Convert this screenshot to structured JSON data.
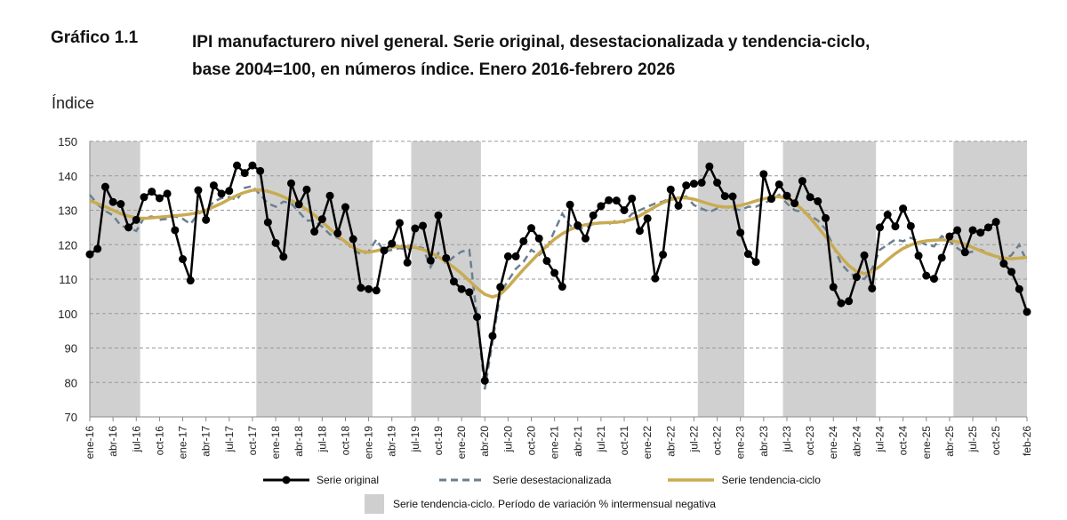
{
  "figure_number": "Gráfico 1.1",
  "title_line1": "IPI manufacturero nivel general. Serie original, desestacionalizada y tendencia-ciclo,",
  "title_line2": "base 2004=100, en números índice. Enero 2016-febrero 2026",
  "chart_data": {
    "type": "line",
    "ylabel": "Índice",
    "ylim": [
      70,
      150
    ],
    "yticks": [
      70,
      80,
      90,
      100,
      110,
      120,
      130,
      140,
      150
    ],
    "grid": true,
    "x_start": "ene-16",
    "x_end": "feb-26",
    "xtick_labels": [
      "ene-16",
      "abr-16",
      "jul-16",
      "oct-16",
      "ene-17",
      "abr-17",
      "jul-17",
      "oct-17",
      "ene-18",
      "abr-18",
      "jul-18",
      "oct-18",
      "ene-19",
      "abr-19",
      "jul-19",
      "oct-19",
      "ene-20",
      "abr-20",
      "jul-20",
      "oct-20",
      "ene-21",
      "abr-21",
      "jul-21",
      "oct-21",
      "ene-22",
      "abr-22",
      "jul-22",
      "oct-22",
      "ene-23",
      "abr-23",
      "jul-23",
      "oct-23",
      "ene-24",
      "abr-24",
      "jul-24",
      "oct-24",
      "ene-25",
      "abr-25",
      "jul-25",
      "oct-25",
      "feb-26"
    ],
    "xtick_month_index": [
      0,
      3,
      6,
      9,
      12,
      15,
      18,
      21,
      24,
      27,
      30,
      33,
      36,
      39,
      42,
      45,
      48,
      51,
      54,
      57,
      60,
      63,
      66,
      69,
      72,
      75,
      78,
      81,
      84,
      87,
      90,
      93,
      96,
      99,
      102,
      105,
      108,
      111,
      114,
      117,
      121
    ],
    "shaded_periods": [
      [
        0,
        7
      ],
      [
        22,
        37
      ],
      [
        42,
        51
      ],
      [
        79,
        85
      ],
      [
        90,
        102
      ],
      [
        112,
        123
      ]
    ],
    "series": [
      {
        "name": "Serie original",
        "color": "#000000",
        "style": "solid-markers",
        "values": [
          117.2,
          118.8,
          136.8,
          132.4,
          131.8,
          125.0,
          127.2,
          133.8,
          135.4,
          133.5,
          134.8,
          124.2,
          115.8,
          109.6,
          135.8,
          127.2,
          137.2,
          134.8,
          135.6,
          143.0,
          140.8,
          143.0,
          141.4,
          126.5,
          120.5,
          116.5,
          137.8,
          131.7,
          136.0,
          123.8,
          127.4,
          134.2,
          123.3,
          130.9,
          121.6,
          107.5,
          107.1,
          106.7,
          118.3,
          120.3,
          126.3,
          114.8,
          124.7,
          125.5,
          115.4,
          128.5,
          116.1,
          109.3,
          107.1,
          106.2,
          99.0,
          80.5,
          93.5,
          107.7,
          116.6,
          116.6,
          121.0,
          124.8,
          121.8,
          115.3,
          111.8,
          107.8,
          131.6,
          125.6,
          121.8,
          128.5,
          131.2,
          132.9,
          132.8,
          130.0,
          133.4,
          124.0,
          127.6,
          110.2,
          117.1,
          136.0,
          131.3,
          137.2,
          137.7,
          138.0,
          142.7,
          138.0,
          134.1,
          134.0,
          123.5,
          117.3,
          115.0,
          140.5,
          133.3,
          137.5,
          134.2,
          132.0,
          138.5,
          133.8,
          132.6,
          127.7,
          107.7,
          103.0,
          103.6,
          110.6,
          116.9,
          107.3,
          125.0,
          128.7,
          125.3,
          130.5,
          125.4,
          116.8,
          111.0,
          110.1,
          116.2,
          122.4,
          124.2,
          117.8,
          124.2,
          123.5,
          125.0,
          126.6,
          114.5,
          112.1,
          107.1,
          100.5
        ]
      },
      {
        "name": "Serie desestacionalizada",
        "color": "#6b7f91",
        "style": "dashed",
        "values": [
          134.5,
          131.7,
          129.8,
          128.5,
          125.5,
          124.8,
          124.0,
          127.8,
          128.2,
          127.2,
          127.5,
          128.2,
          127.5,
          126.0,
          129.0,
          130.0,
          132.5,
          133.5,
          133.8,
          133.0,
          136.5,
          137.0,
          134.5,
          132.0,
          131.0,
          132.5,
          132.0,
          129.5,
          127.0,
          127.0,
          125.2,
          123.0,
          122.0,
          121.0,
          118.5,
          117.2,
          118.0,
          121.5,
          118.0,
          118.5,
          119.0,
          118.5,
          119.5,
          119.0,
          113.5,
          117.5,
          114.5,
          116.5,
          118.0,
          118.5,
          99.0,
          78.0,
          92.0,
          106.0,
          109.5,
          113.0,
          115.0,
          118.5,
          117.0,
          119.0,
          124.0,
          129.0,
          125.5,
          124.5,
          125.0,
          126.0,
          126.5,
          126.0,
          127.0,
          126.5,
          129.0,
          130.0,
          131.0,
          132.0,
          132.5,
          133.5,
          133.5,
          134.0,
          131.5,
          130.5,
          129.5,
          130.5,
          131.0,
          130.5,
          130.0,
          131.0,
          131.0,
          132.0,
          133.0,
          134.5,
          132.0,
          130.0,
          129.5,
          128.5,
          127.0,
          124.5,
          119.5,
          114.5,
          112.0,
          110.5,
          110.0,
          113.0,
          118.5,
          120.0,
          121.5,
          121.0,
          122.0,
          121.0,
          120.0,
          119.5,
          122.5,
          121.0,
          119.0,
          117.5,
          118.0,
          118.5,
          117.5,
          116.5,
          115.5,
          117.0,
          120.0,
          115.0
        ]
      },
      {
        "name": "Serie tendencia-ciclo",
        "color": "#c9ab52",
        "style": "solid",
        "values": [
          132.8,
          131.9,
          131.0,
          130.0,
          129.0,
          128.3,
          127.8,
          127.6,
          127.8,
          128.0,
          128.2,
          128.4,
          128.6,
          128.9,
          129.3,
          130.0,
          131.0,
          132.0,
          133.2,
          134.3,
          135.2,
          135.8,
          135.9,
          135.5,
          134.8,
          133.9,
          132.8,
          131.6,
          130.2,
          128.6,
          126.6,
          124.6,
          122.6,
          120.8,
          119.2,
          118.1,
          117.8,
          118.2,
          118.8,
          119.3,
          119.5,
          119.4,
          119.2,
          118.6,
          117.7,
          116.5,
          115.0,
          113.4,
          111.6,
          109.5,
          107.4,
          105.6,
          104.8,
          105.6,
          107.7,
          110.3,
          112.8,
          115.2,
          117.5,
          119.6,
          121.6,
          123.2,
          124.4,
          125.2,
          125.8,
          126.1,
          126.3,
          126.4,
          126.5,
          126.8,
          127.4,
          128.4,
          129.7,
          131.0,
          132.2,
          133.1,
          133.6,
          133.6,
          133.2,
          132.5,
          131.8,
          131.2,
          130.9,
          131.0,
          131.4,
          132.0,
          132.7,
          133.3,
          133.8,
          133.9,
          133.4,
          132.1,
          130.2,
          127.8,
          125.1,
          122.3,
          119.3,
          116.4,
          113.9,
          112.2,
          111.6,
          112.2,
          113.7,
          115.6,
          117.4,
          118.9,
          119.9,
          120.7,
          121.1,
          121.3,
          121.4,
          121.3,
          120.8,
          120.1,
          119.2,
          118.2,
          117.3,
          116.6,
          116.1,
          115.9,
          116.1,
          116.3
        ]
      }
    ]
  },
  "legend": {
    "original": "Serie original",
    "seasonal": "Serie desestacionalizada",
    "trend": "Serie tendencia-ciclo",
    "shaded": "Serie tendencia-ciclo. Período de variación % intermensual negativa"
  }
}
